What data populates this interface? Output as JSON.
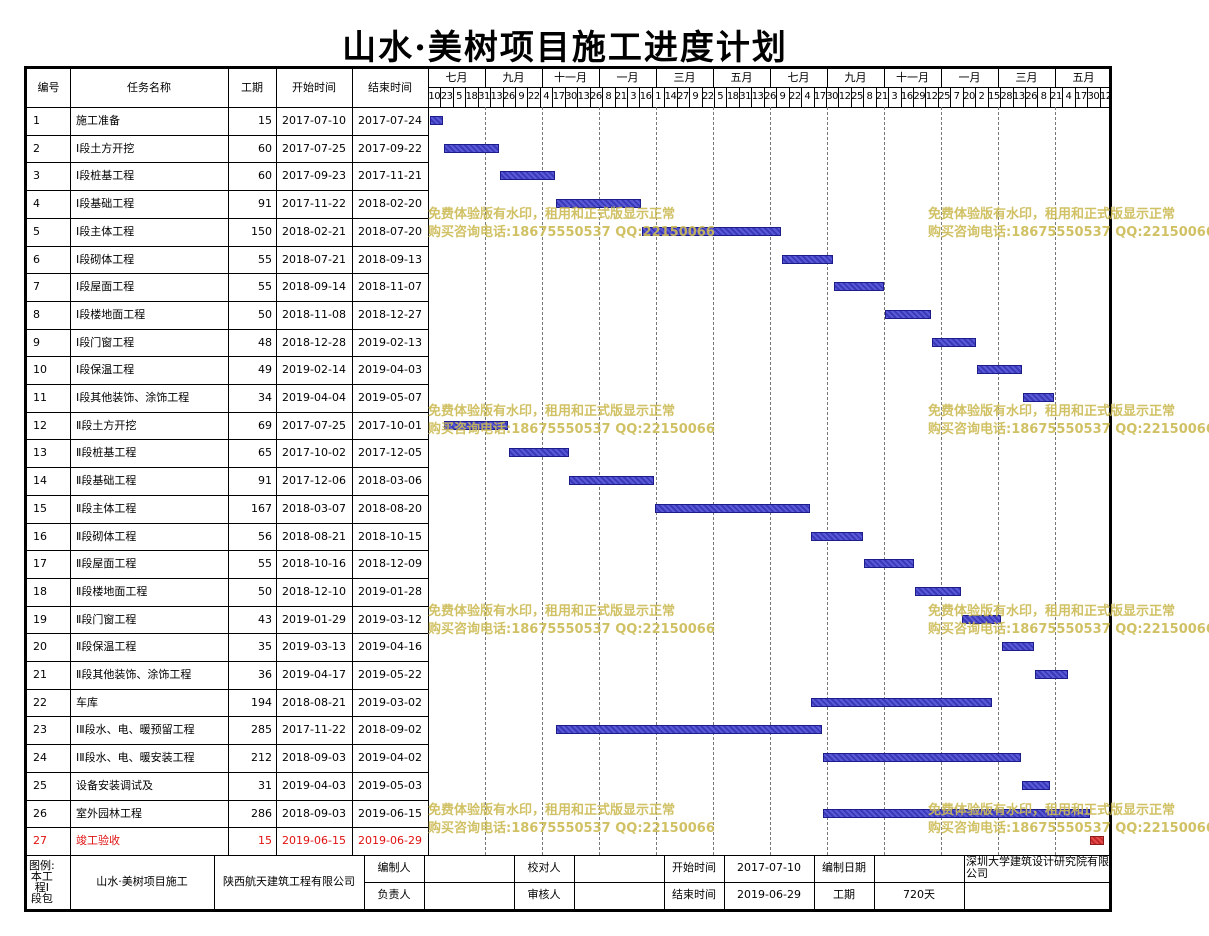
{
  "title": "山水·美树项目施工进度计划",
  "colors": {
    "bar": "#4040c0",
    "final_bar": "#e03030",
    "final_text": "#e01010",
    "watermark": "#cdbb55"
  },
  "headers": {
    "id": "编号",
    "name": "任务名称",
    "dur": "工期",
    "start": "开始时间",
    "end": "结束时间"
  },
  "timeline": {
    "months": [
      "七月",
      "九月",
      "十一月",
      "一月",
      "三月",
      "五月",
      "七月",
      "九月",
      "十一月",
      "一月",
      "三月",
      "五月"
    ],
    "days": [
      "10",
      "23",
      "5",
      "18",
      "31",
      "13",
      "26",
      "9",
      "22",
      "4",
      "17",
      "30",
      "13",
      "26",
      "8",
      "21",
      "3",
      "16",
      "1",
      "14",
      "27",
      "9",
      "22",
      "5",
      "18",
      "31",
      "13",
      "26",
      "9",
      "22",
      "4",
      "17",
      "30",
      "12",
      "25",
      "8",
      "21",
      "3",
      "16",
      "29",
      "12",
      "25",
      "7",
      "20",
      "2",
      "15",
      "28",
      "13",
      "26",
      "8",
      "21",
      "4",
      "17",
      "30",
      "12"
    ]
  },
  "tasks": [
    {
      "id": "1",
      "name": "施工准备",
      "dur": "15",
      "start": "2017-07-10",
      "end": "2017-07-24"
    },
    {
      "id": "2",
      "name": "Ⅰ段土方开挖",
      "dur": "60",
      "start": "2017-07-25",
      "end": "2017-09-22"
    },
    {
      "id": "3",
      "name": "Ⅰ段桩基工程",
      "dur": "60",
      "start": "2017-09-23",
      "end": "2017-11-21"
    },
    {
      "id": "4",
      "name": "Ⅰ段基础工程",
      "dur": "91",
      "start": "2017-11-22",
      "end": "2018-02-20"
    },
    {
      "id": "5",
      "name": "Ⅰ段主体工程",
      "dur": "150",
      "start": "2018-02-21",
      "end": "2018-07-20"
    },
    {
      "id": "6",
      "name": "Ⅰ段砌体工程",
      "dur": "55",
      "start": "2018-07-21",
      "end": "2018-09-13"
    },
    {
      "id": "7",
      "name": "Ⅰ段屋面工程",
      "dur": "55",
      "start": "2018-09-14",
      "end": "2018-11-07"
    },
    {
      "id": "8",
      "name": "Ⅰ段楼地面工程",
      "dur": "50",
      "start": "2018-11-08",
      "end": "2018-12-27"
    },
    {
      "id": "9",
      "name": "Ⅰ段门窗工程",
      "dur": "48",
      "start": "2018-12-28",
      "end": "2019-02-13"
    },
    {
      "id": "10",
      "name": "Ⅰ段保温工程",
      "dur": "49",
      "start": "2019-02-14",
      "end": "2019-04-03"
    },
    {
      "id": "11",
      "name": "Ⅰ段其他装饰、涂饰工程",
      "dur": "34",
      "start": "2019-04-04",
      "end": "2019-05-07"
    },
    {
      "id": "12",
      "name": "Ⅱ段土方开挖",
      "dur": "69",
      "start": "2017-07-25",
      "end": "2017-10-01"
    },
    {
      "id": "13",
      "name": "Ⅱ段桩基工程",
      "dur": "65",
      "start": "2017-10-02",
      "end": "2017-12-05"
    },
    {
      "id": "14",
      "name": "Ⅱ段基础工程",
      "dur": "91",
      "start": "2017-12-06",
      "end": "2018-03-06"
    },
    {
      "id": "15",
      "name": "Ⅱ段主体工程",
      "dur": "167",
      "start": "2018-03-07",
      "end": "2018-08-20"
    },
    {
      "id": "16",
      "name": "Ⅱ段砌体工程",
      "dur": "56",
      "start": "2018-08-21",
      "end": "2018-10-15"
    },
    {
      "id": "17",
      "name": "Ⅱ段屋面工程",
      "dur": "55",
      "start": "2018-10-16",
      "end": "2018-12-09"
    },
    {
      "id": "18",
      "name": "Ⅱ段楼地面工程",
      "dur": "50",
      "start": "2018-12-10",
      "end": "2019-01-28"
    },
    {
      "id": "19",
      "name": "Ⅱ段门窗工程",
      "dur": "43",
      "start": "2019-01-29",
      "end": "2019-03-12"
    },
    {
      "id": "20",
      "name": "Ⅱ段保温工程",
      "dur": "35",
      "start": "2019-03-13",
      "end": "2019-04-16"
    },
    {
      "id": "21",
      "name": "Ⅱ段其他装饰、涂饰工程",
      "dur": "36",
      "start": "2019-04-17",
      "end": "2019-05-22"
    },
    {
      "id": "22",
      "name": "车库",
      "dur": "194",
      "start": "2018-08-21",
      "end": "2019-03-02"
    },
    {
      "id": "23",
      "name": "ⅠⅡ段水、电、暖预留工程",
      "dur": "285",
      "start": "2017-11-22",
      "end": "2018-09-02"
    },
    {
      "id": "24",
      "name": "ⅠⅡ段水、电、暖安装工程",
      "dur": "212",
      "start": "2018-09-03",
      "end": "2019-04-02"
    },
    {
      "id": "25",
      "name": "设备安装调试及",
      "dur": "31",
      "start": "2019-04-03",
      "end": "2019-05-03"
    },
    {
      "id": "26",
      "name": "室外园林工程",
      "dur": "286",
      "start": "2018-09-03",
      "end": "2019-06-15"
    },
    {
      "id": "27",
      "name": "竣工验收",
      "dur": "15",
      "start": "2019-06-15",
      "end": "2019-06-29",
      "highlight": true
    }
  ],
  "watermark": {
    "line1": "免费体验版有水印，租用和正式版显示正常",
    "line2": "购买咨询电话:18675550537 QQ:22150066"
  },
  "footer": {
    "legend": "图例:\n本工\n程Ⅰ\n段包",
    "project": "山水·美树项目施工",
    "company": "陕西航天建筑工程有限公司",
    "compiler_label": "编制人",
    "checker_label": "校对人",
    "start_label": "开始时间",
    "start_value": "2017-07-10",
    "compile_date_label": "编制日期",
    "org": "深圳大学建筑设计研究院有限公司",
    "responsible_label": "负责人",
    "reviewer_label": "审核人",
    "end_label": "结束时间",
    "end_value": "2019-06-29",
    "duration_label": "工期",
    "duration_value": "720天"
  }
}
